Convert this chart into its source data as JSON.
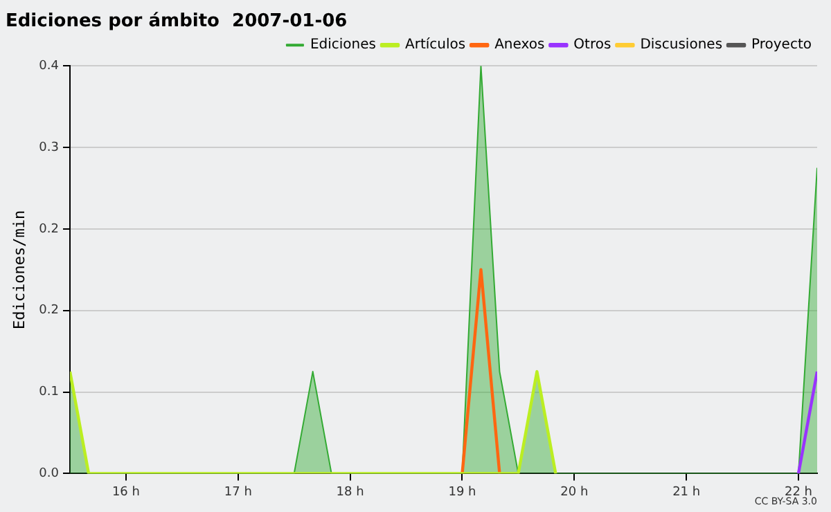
{
  "chart_data": {
    "type": "line",
    "title": "Ediciones por ámbito  2007-01-06",
    "ylabel": "Ediciones/min",
    "x": [
      15.5,
      15.6667,
      15.8333,
      16,
      16.1667,
      16.3333,
      16.5,
      16.6667,
      16.8333,
      17,
      17.1667,
      17.3333,
      17.5,
      17.6667,
      17.8333,
      18,
      18.1667,
      18.3333,
      18.5,
      18.6667,
      18.8333,
      19,
      19.1667,
      19.3333,
      19.5,
      19.6667,
      19.8333,
      20,
      20.1667,
      20.3333,
      20.5,
      20.6667,
      20.8333,
      21,
      21.1667,
      21.3333,
      21.5,
      21.6667,
      21.8333,
      22,
      22.1667
    ],
    "series": [
      {
        "name": "Ediciones",
        "type": "area",
        "color": "#33aa33",
        "values": [
          0.1,
          0,
          0,
          0,
          0,
          0,
          0,
          0,
          0,
          0,
          0,
          0,
          0,
          0.1,
          0,
          0,
          0,
          0,
          0,
          0,
          0,
          0,
          0.4,
          0.1,
          0,
          0.1,
          0,
          0,
          0,
          0,
          0,
          0,
          0,
          0,
          0,
          0,
          0,
          0,
          0,
          0,
          0.3
        ]
      },
      {
        "name": "Artículos",
        "color": "#bbee22",
        "values": [
          0.1,
          0,
          0,
          0,
          0,
          0,
          0,
          0,
          0,
          0,
          0,
          0,
          0,
          0,
          0,
          0,
          0,
          0,
          0,
          0,
          0,
          0,
          0,
          0,
          0,
          0.1,
          0,
          null,
          null,
          null,
          null,
          null,
          null,
          null,
          null,
          null,
          null,
          null,
          null,
          null,
          null
        ]
      },
      {
        "name": "Anexos",
        "color": "#ff6611",
        "values": [
          null,
          null,
          null,
          null,
          null,
          null,
          null,
          null,
          null,
          null,
          null,
          null,
          null,
          null,
          null,
          null,
          null,
          null,
          null,
          null,
          null,
          0,
          0.2,
          0,
          null,
          null,
          null,
          null,
          null,
          null,
          null,
          null,
          null,
          null,
          null,
          null,
          null,
          null,
          null,
          null,
          null
        ]
      },
      {
        "name": "Otros",
        "color": "#9933ff",
        "values": [
          null,
          null,
          null,
          null,
          null,
          null,
          null,
          null,
          null,
          null,
          null,
          null,
          null,
          null,
          null,
          null,
          null,
          null,
          null,
          null,
          null,
          null,
          null,
          null,
          null,
          null,
          null,
          null,
          null,
          null,
          null,
          null,
          null,
          null,
          null,
          null,
          null,
          null,
          null,
          0,
          0.1
        ]
      },
      {
        "name": "Discusiones",
        "color": "#ffcc33",
        "values": [
          null,
          null,
          null,
          null,
          null,
          null,
          null,
          null,
          null,
          null,
          null,
          null,
          null,
          null,
          null,
          null,
          null,
          null,
          null,
          null,
          null,
          null,
          null,
          null,
          null,
          null,
          null,
          null,
          null,
          null,
          null,
          null,
          null,
          null,
          null,
          null,
          null,
          null,
          null,
          null,
          null
        ]
      },
      {
        "name": "Proyecto",
        "color": "#555555",
        "values": [
          null,
          null,
          null,
          null,
          null,
          null,
          null,
          null,
          null,
          null,
          null,
          null,
          null,
          null,
          null,
          null,
          null,
          null,
          null,
          null,
          null,
          null,
          null,
          null,
          null,
          null,
          null,
          null,
          null,
          null,
          null,
          null,
          null,
          null,
          null,
          null,
          null,
          null,
          null,
          null,
          null
        ]
      }
    ],
    "xlim": [
      15.5,
      22.1667
    ],
    "xticks": [
      {
        "value": 16,
        "label": "16 h"
      },
      {
        "value": 17,
        "label": "17 h"
      },
      {
        "value": 18,
        "label": "18 h"
      },
      {
        "value": 19,
        "label": "19 h"
      },
      {
        "value": 20,
        "label": "20 h"
      },
      {
        "value": 21,
        "label": "21 h"
      },
      {
        "value": 22,
        "label": "22 h"
      }
    ],
    "ylim": [
      0,
      0.4
    ],
    "yticks": [
      {
        "value": 0,
        "label": "0.0"
      },
      {
        "value": 0.08,
        "label": "0.1"
      },
      {
        "value": 0.16,
        "label": "0.2"
      },
      {
        "value": 0.24,
        "label": "0.2"
      },
      {
        "value": 0.32,
        "label": "0.3"
      },
      {
        "value": 0.4,
        "label": "0.4"
      }
    ],
    "grid": "y",
    "legend": "top right",
    "marker": "none",
    "line_style": "solid",
    "annotations": [
      "CC BY-SA 3.0"
    ]
  }
}
